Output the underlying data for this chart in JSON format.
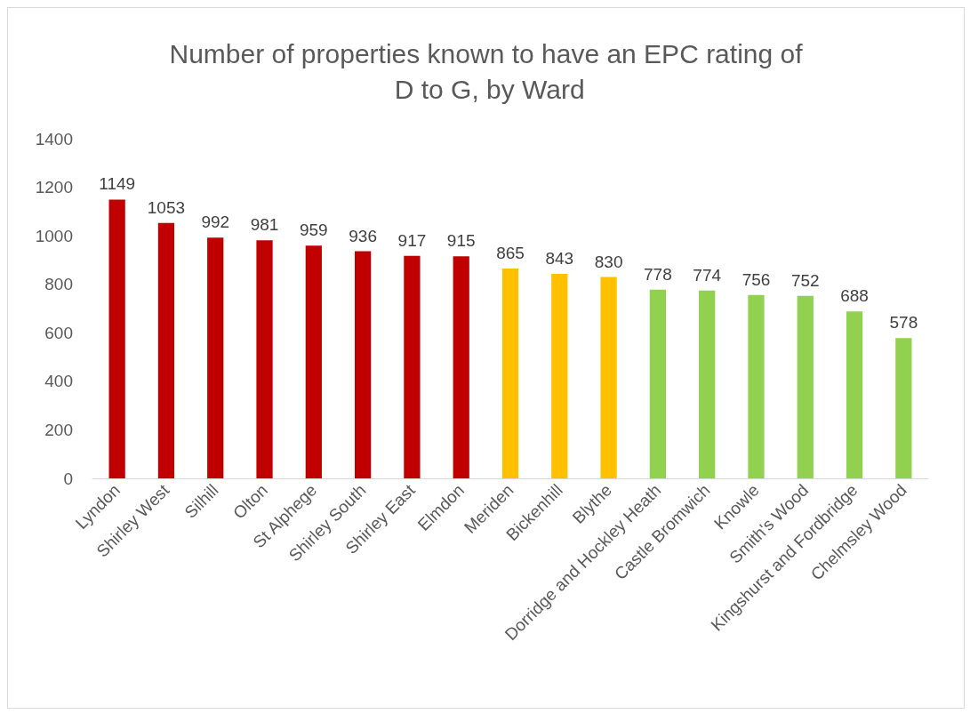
{
  "chart_data": {
    "type": "bar",
    "title": "Number of properties known to have an EPC rating of D to G, by Ward",
    "categories": [
      "Lyndon",
      "Shirley West",
      "Silhill",
      "Olton",
      "St Alphege",
      "Shirley South",
      "Shirley East",
      "Elmdon",
      "Meriden",
      "Bickenhill",
      "Blythe",
      "Dorridge and Hockley Heath",
      "Castle Bromwich",
      "Knowle",
      "Smith's Wood",
      "Kingshurst and Fordbridge",
      "Chelmsley Wood"
    ],
    "values": [
      1149,
      1053,
      992,
      981,
      959,
      936,
      917,
      915,
      865,
      843,
      830,
      778,
      774,
      756,
      752,
      688,
      578
    ],
    "colors": [
      "#c00000",
      "#c00000",
      "#c00000",
      "#c00000",
      "#c00000",
      "#c00000",
      "#c00000",
      "#c00000",
      "#ffc000",
      "#ffc000",
      "#ffc000",
      "#92d050",
      "#92d050",
      "#92d050",
      "#92d050",
      "#92d050",
      "#92d050"
    ],
    "ylim": [
      0,
      1400
    ],
    "yticks": [
      0,
      200,
      400,
      600,
      800,
      1000,
      1200,
      1400
    ],
    "grid": false,
    "data_labels": true
  }
}
